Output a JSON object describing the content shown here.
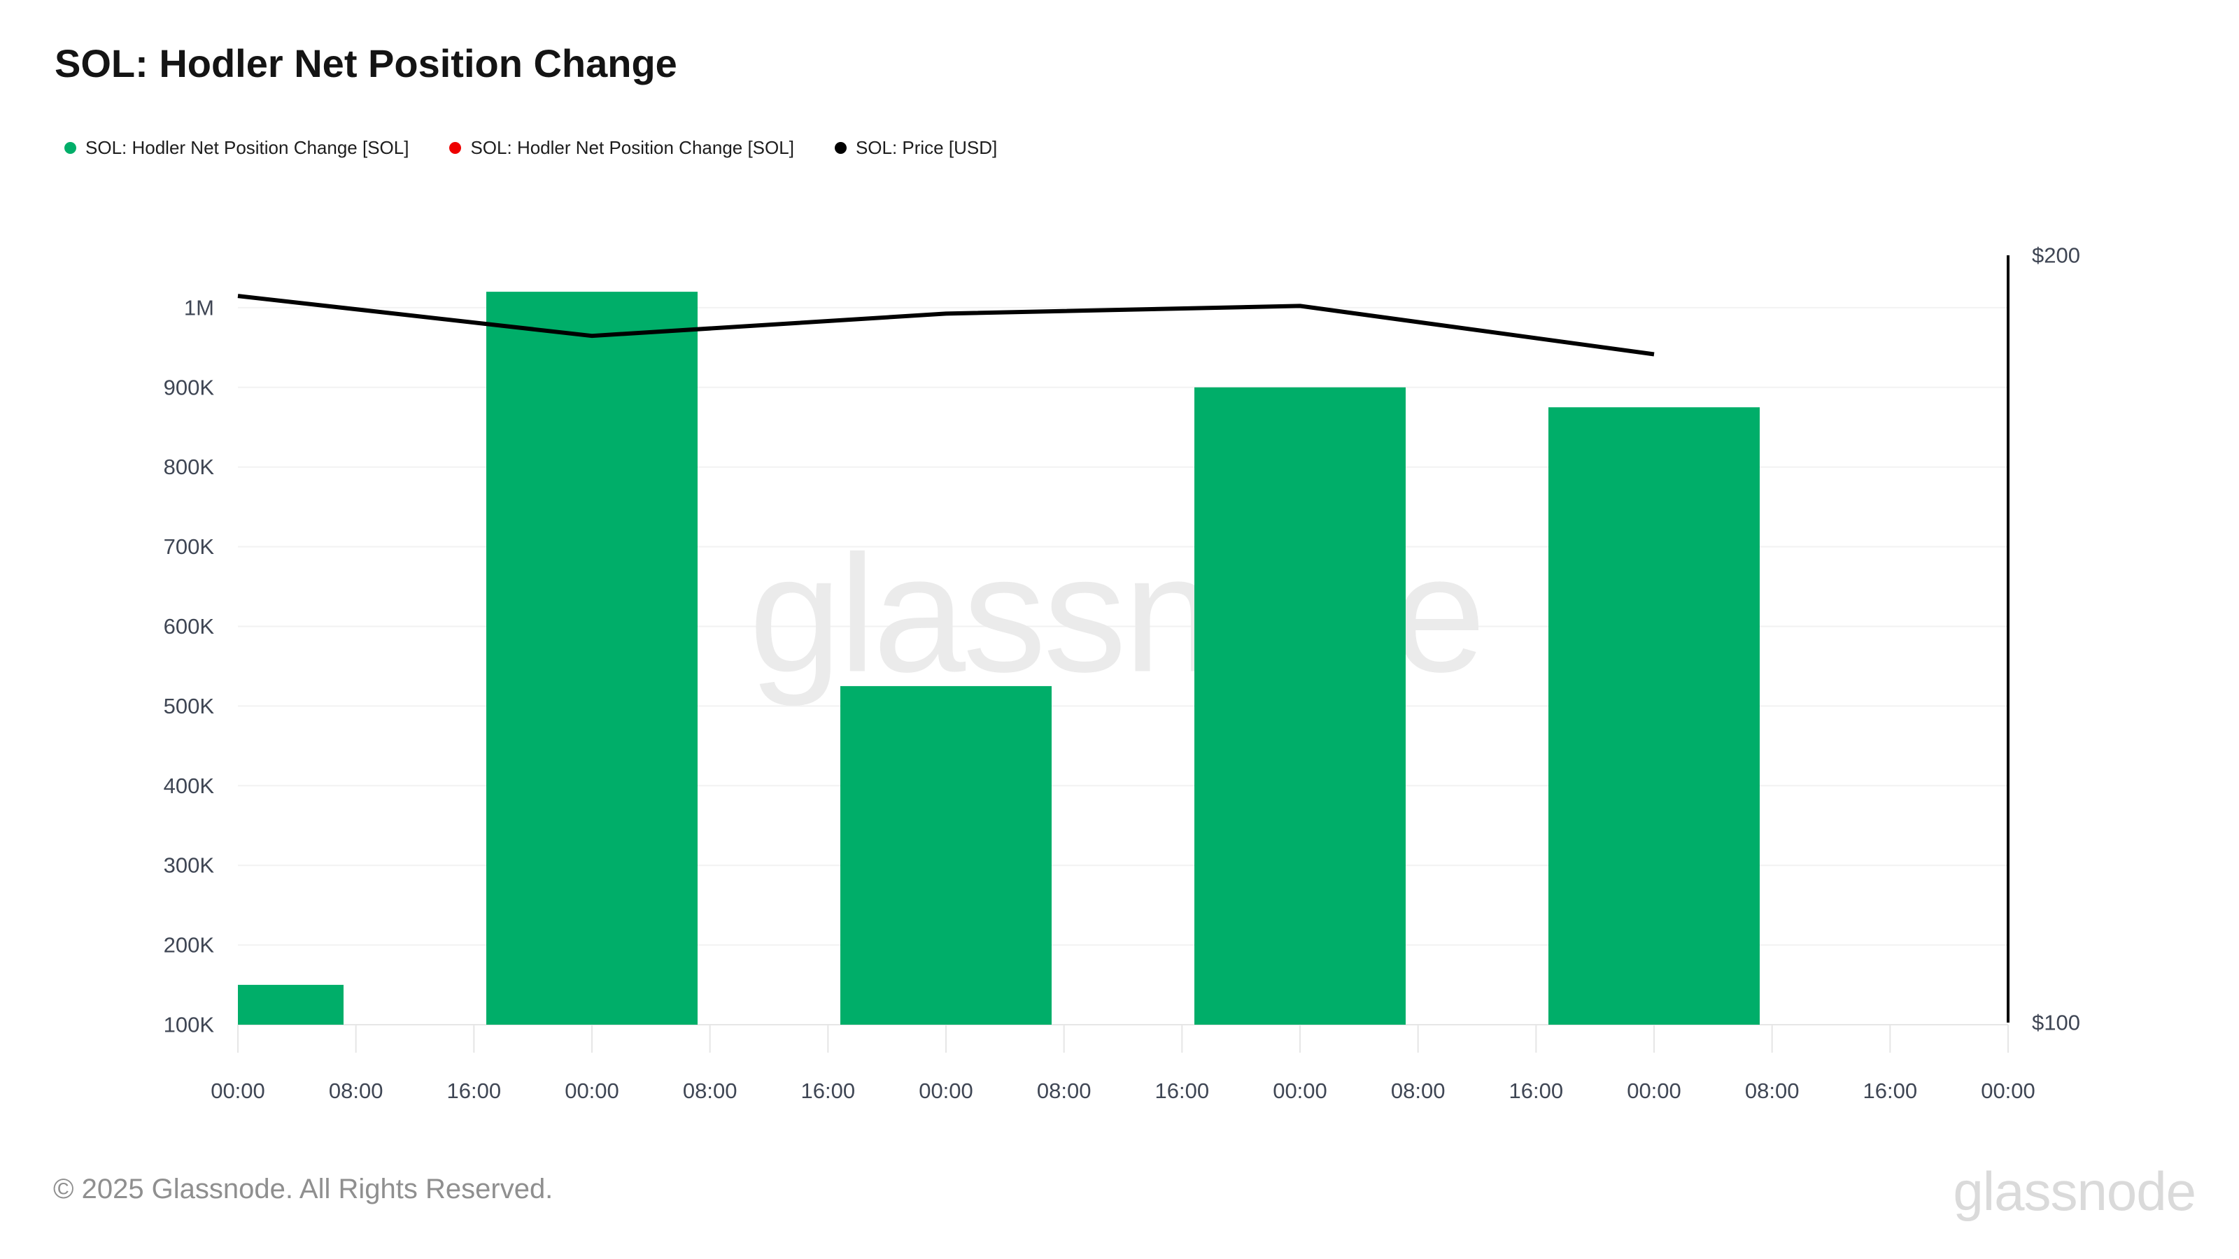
{
  "title": "SOL: Hodler Net Position Change",
  "legend": {
    "items": [
      {
        "label": "SOL: Hodler Net Position Change [SOL]",
        "color": "#00ae69",
        "marker": "circle"
      },
      {
        "label": "SOL: Hodler Net Position Change [SOL]",
        "color": "#ee0000",
        "marker": "circle"
      },
      {
        "label": "SOL: Price [USD]",
        "color": "#000000",
        "marker": "circle"
      }
    ]
  },
  "chart_data": {
    "type": "bar",
    "title": "SOL: Hodler Net Position Change",
    "x_tick_labels": [
      "00:00",
      "08:00",
      "16:00",
      "00:00",
      "08:00",
      "16:00",
      "00:00",
      "08:00",
      "16:00",
      "00:00",
      "08:00",
      "16:00",
      "00:00",
      "08:00",
      "16:00",
      "00:00"
    ],
    "x_note": "8-hour ticks; bars and price points are daily, centered on each 00:00 tick (tick indices 0,3,6,9,12)",
    "day_tick_indices": [
      0,
      3,
      6,
      9,
      12
    ],
    "series": [
      {
        "name": "SOL: Hodler Net Position Change [SOL]",
        "type": "bar",
        "color": "#00ae69",
        "axis": "left",
        "values": [
          150000,
          1020000,
          525000,
          900000,
          875000
        ]
      },
      {
        "name": "SOL: Hodler Net Position Change [SOL]",
        "type": "bar",
        "color": "#ee0000",
        "axis": "left",
        "values": []
      },
      {
        "name": "SOL: Price [USD]",
        "type": "line",
        "color": "#000000",
        "axis": "right",
        "values": [
          194.7,
          189.5,
          192.4,
          193.4,
          187.1
        ]
      }
    ],
    "y_left": {
      "min": 100000,
      "max": 1000000,
      "tick_step": 100000,
      "tick_labels": [
        "100K",
        "200K",
        "300K",
        "400K",
        "500K",
        "600K",
        "700K",
        "800K",
        "900K",
        "1M"
      ],
      "bars_baseline": 100000
    },
    "y_right": {
      "min": 100,
      "max": 200,
      "tick_labels": [
        "$100",
        "$200"
      ]
    },
    "grid": "horizontal",
    "legend_position": "top-left",
    "watermark": "glassnode"
  },
  "footer": {
    "copyright": "© 2025 Glassnode. All Rights Reserved.",
    "logo_text": "glassnode"
  }
}
